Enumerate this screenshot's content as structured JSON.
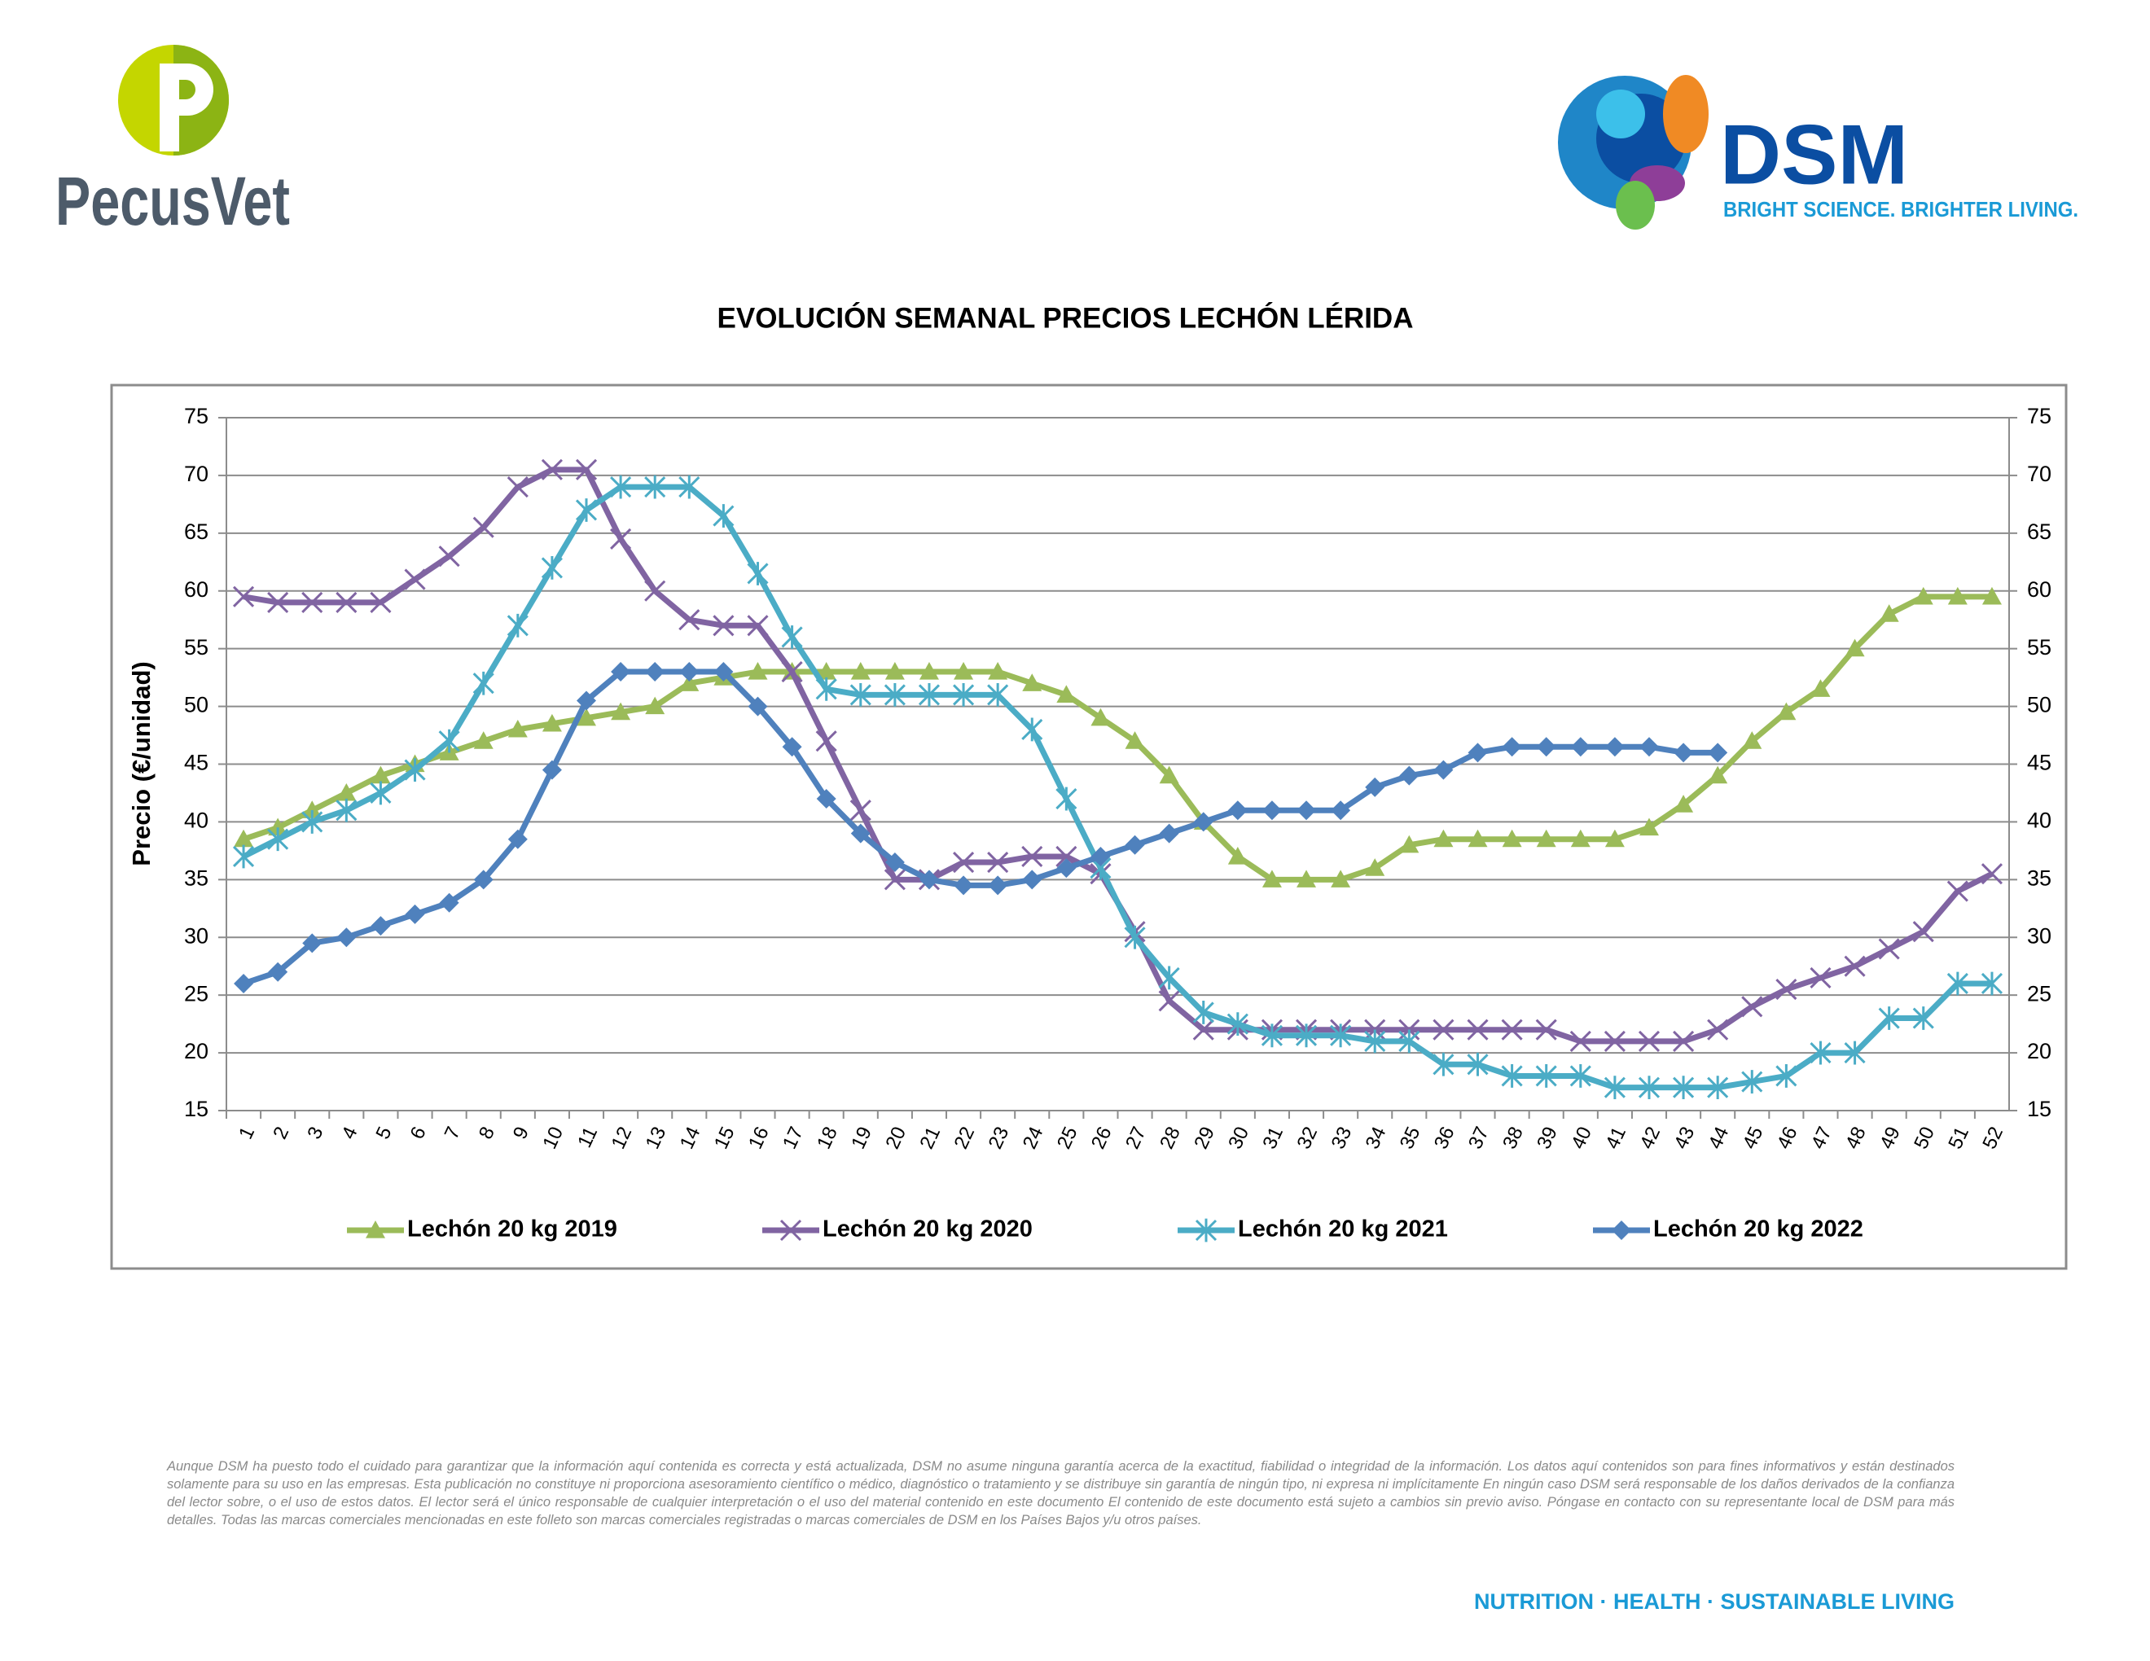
{
  "header": {
    "left_logo": "PecusVet",
    "right_logo": "DSM",
    "right_tagline": "BRIGHT SCIENCE. BRIGHTER LIVING."
  },
  "chart_data": {
    "type": "line",
    "title": "EVOLUCIÓN SEMANAL PRECIOS LECHÓN LÉRIDA",
    "y_label": "Precio (€/unidad)",
    "categories": [
      "1",
      "2",
      "3",
      "4",
      "5",
      "6",
      "7",
      "8",
      "9",
      "10",
      "11",
      "12",
      "13",
      "14",
      "15",
      "16",
      "17",
      "18",
      "19",
      "20",
      "21",
      "22",
      "23",
      "24",
      "25",
      "26",
      "27",
      "28",
      "29",
      "30",
      "31",
      "32",
      "33",
      "34",
      "35",
      "36",
      "37",
      "38",
      "39",
      "40",
      "41",
      "42",
      "43",
      "44",
      "45",
      "46",
      "47",
      "48",
      "49",
      "50",
      "51",
      "52"
    ],
    "ylim": [
      15,
      75
    ],
    "yticks": [
      15,
      20,
      25,
      30,
      35,
      40,
      45,
      50,
      55,
      60,
      65,
      70,
      75
    ],
    "y2lim": [
      15,
      75
    ],
    "y2ticks": [
      15,
      20,
      25,
      30,
      35,
      40,
      45,
      50,
      55,
      60,
      65,
      70,
      75
    ],
    "grid": true,
    "legend": "bottom",
    "series": [
      {
        "name": "Lechón 20 kg 2019",
        "color": "#9bbb59",
        "marker": "triangle",
        "values": [
          38.5,
          39.5,
          41,
          42.5,
          44,
          45,
          46,
          47,
          48,
          48.5,
          49,
          49.5,
          50,
          52,
          52.5,
          53,
          53,
          53,
          53,
          53,
          53,
          53,
          53,
          52,
          51,
          49,
          47,
          44,
          40,
          37,
          35,
          35,
          35,
          36,
          38,
          38.5,
          38.5,
          38.5,
          38.5,
          38.5,
          38.5,
          39.5,
          41.5,
          44,
          47,
          49.5,
          51.5,
          55,
          58,
          59.5,
          59.5,
          59.5
        ]
      },
      {
        "name": "Lechón 20 kg 2020",
        "color": "#8064a2",
        "marker": "x",
        "values": [
          59.5,
          59,
          59,
          59,
          59,
          61,
          63,
          65.5,
          69,
          70.5,
          70.5,
          64.5,
          60,
          57.5,
          57,
          57,
          53,
          47,
          41,
          35,
          35,
          36.5,
          36.5,
          37,
          37,
          35.5,
          30.5,
          24.5,
          22,
          22,
          22,
          22,
          22,
          22,
          22,
          22,
          22,
          22,
          22,
          21,
          21,
          21,
          21,
          22,
          24,
          25.5,
          26.5,
          27.5,
          29,
          30.5,
          34,
          35.5
        ]
      },
      {
        "name": "Lechón 20 kg 2021",
        "color": "#4bacc6",
        "marker": "star",
        "values": [
          37,
          38.5,
          40,
          41,
          42.5,
          44.5,
          47,
          52,
          57,
          62,
          67,
          69,
          69,
          69,
          66.5,
          61.5,
          56,
          51.5,
          51,
          51,
          51,
          51,
          51,
          48,
          42,
          36,
          30,
          26.5,
          23.5,
          22.5,
          21.5,
          21.5,
          21.5,
          21,
          21,
          19,
          19,
          18,
          18,
          18,
          17,
          17,
          17,
          17,
          17.5,
          18,
          20,
          20,
          23,
          23,
          26,
          26
        ]
      },
      {
        "name": "Lechón 20 kg 2022",
        "color": "#4f81bd",
        "marker": "diamond",
        "values": [
          26,
          27,
          29.5,
          30,
          31,
          32,
          33,
          35,
          38.5,
          44.5,
          50.5,
          53,
          53,
          53,
          53,
          50,
          46.5,
          42,
          39,
          36.5,
          35,
          34.5,
          34.5,
          35,
          36,
          37,
          38,
          39,
          40,
          41,
          41,
          41,
          41,
          43,
          44,
          44.5,
          46,
          46.5,
          46.5,
          46.5,
          46.5,
          46.5,
          46,
          46,
          null,
          null,
          null,
          null,
          null,
          null,
          null,
          null
        ]
      }
    ]
  },
  "disclaimer": "Aunque DSM ha puesto todo el cuidado para garantizar que la información aquí contenida es correcta y está actualizada, DSM no asume ninguna garantía acerca de la exactitud, fiabilidad o integridad de la información. Los datos aquí contenidos son para fines informativos y están destinados solamente para su uso en las empresas. Esta publicación no constituye ni proporciona asesoramiento científico o médico, diagnóstico o tratamiento y se distribuye sin garantía de ningún tipo, ni expresa ni implícitamente En ningún caso DSM será responsable de los daños derivados de la confianza del lector sobre, o el uso de estos datos. El lector será el único responsable de cualquier interpretación o el uso del material contenido en este documento El contenido de este documento está sujeto a cambios sin previo aviso. Póngase en contacto con su representante local de DSM para más detalles. Todas las marcas comerciales mencionadas en este folleto son marcas comerciales registradas o marcas comerciales de DSM en los Países Bajos y/u otros países.",
  "footer": "NUTRITION · HEALTH · SUSTAINABLE LIVING"
}
